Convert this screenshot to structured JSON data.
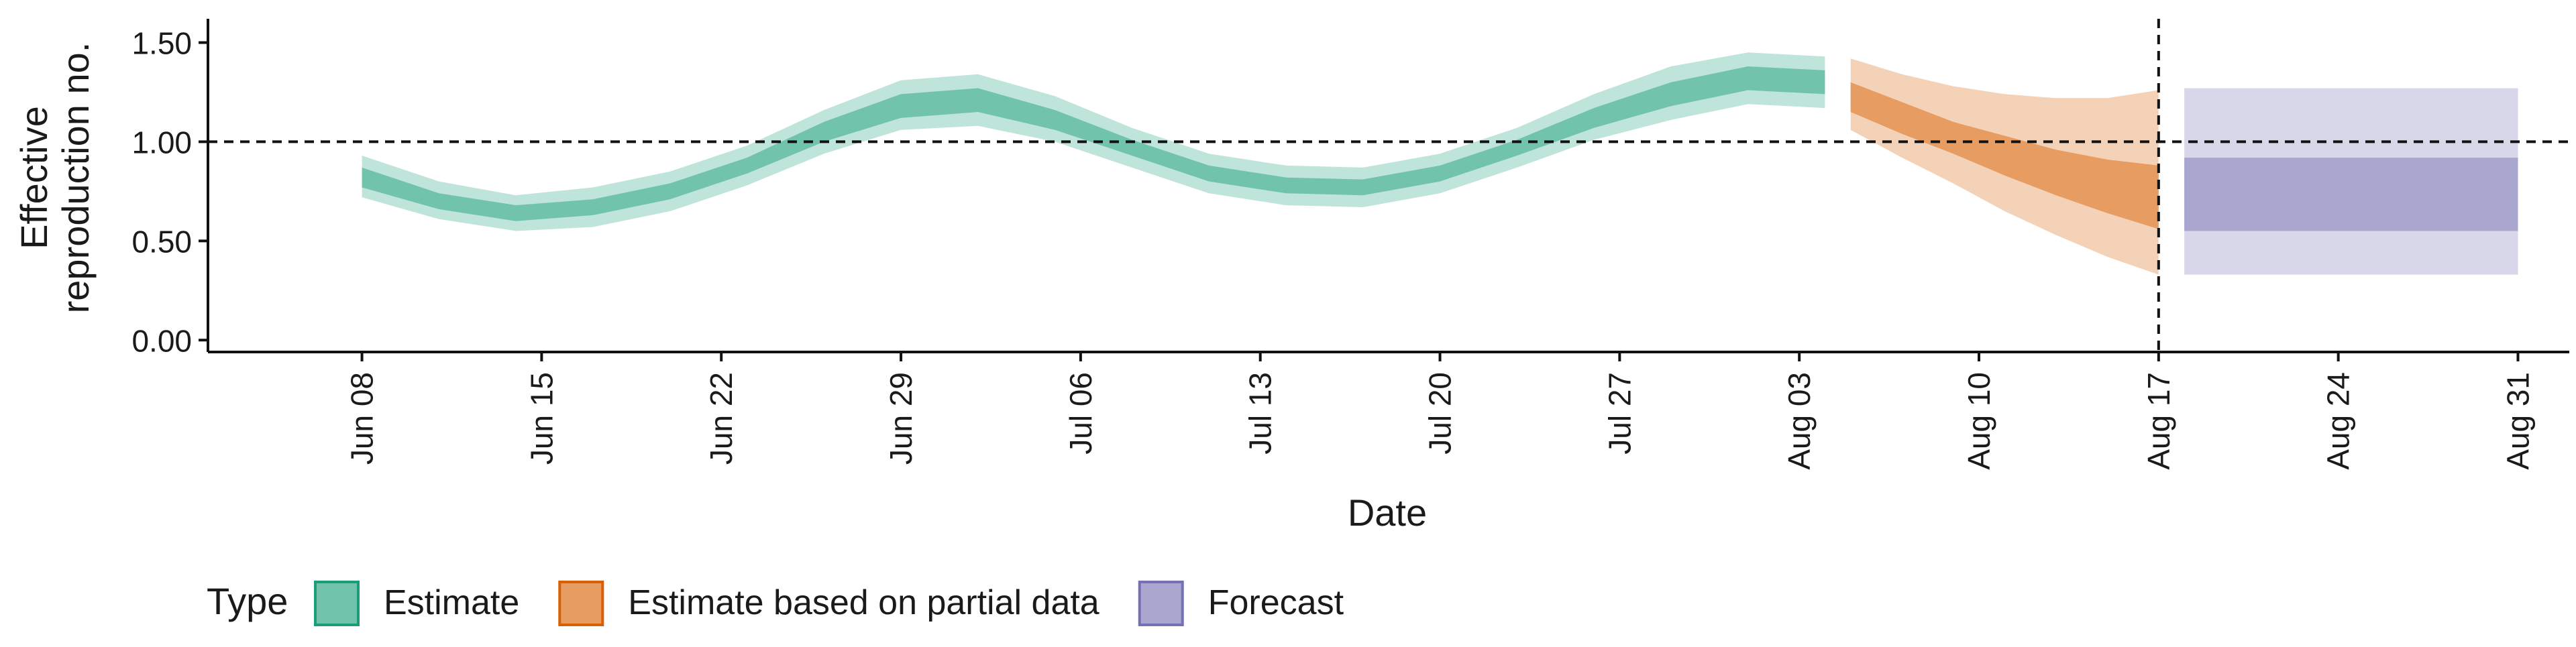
{
  "chart_data": {
    "type": "area",
    "xlabel": "Date",
    "ylabel_lines": [
      "Effective",
      "reproduction no."
    ],
    "ylim": [
      -0.06,
      1.62
    ],
    "yticks": [
      0.0,
      0.5,
      1.0,
      1.5
    ],
    "ytick_labels": [
      "0.00",
      "0.50",
      "1.00",
      "1.50"
    ],
    "xlim": [
      "2020-06-02",
      "2020-09-02"
    ],
    "xticks": [
      "2020-06-08",
      "2020-06-15",
      "2020-06-22",
      "2020-06-29",
      "2020-07-06",
      "2020-07-13",
      "2020-07-20",
      "2020-07-27",
      "2020-08-03",
      "2020-08-10",
      "2020-08-17",
      "2020-08-24",
      "2020-08-31"
    ],
    "xtick_labels": [
      "Jun 08",
      "Jun 15",
      "Jun 22",
      "Jun 29",
      "Jul 06",
      "Jul 13",
      "Jul 20",
      "Jul 27",
      "Aug 03",
      "Aug 10",
      "Aug 17",
      "Aug 24",
      "Aug 31"
    ],
    "reference_line_y": 1.0,
    "vertical_line_x": "2020-08-17",
    "legend": {
      "title": "Type",
      "position": "bottom-left",
      "entries": [
        "Estimate",
        "Estimate based on partial data",
        "Forecast"
      ]
    },
    "series": [
      {
        "name": "Estimate",
        "color": "#1B9E77",
        "dates": [
          "2020-06-08",
          "2020-06-11",
          "2020-06-14",
          "2020-06-17",
          "2020-06-20",
          "2020-06-23",
          "2020-06-26",
          "2020-06-29",
          "2020-07-02",
          "2020-07-05",
          "2020-07-08",
          "2020-07-11",
          "2020-07-14",
          "2020-07-17",
          "2020-07-20",
          "2020-07-23",
          "2020-07-26",
          "2020-07-29",
          "2020-08-01",
          "2020-08-04"
        ],
        "median": [
          0.82,
          0.7,
          0.64,
          0.67,
          0.75,
          0.88,
          1.05,
          1.18,
          1.21,
          1.11,
          0.97,
          0.84,
          0.78,
          0.77,
          0.84,
          0.97,
          1.12,
          1.24,
          1.32,
          1.3
        ],
        "inner_lower": [
          0.77,
          0.66,
          0.6,
          0.63,
          0.71,
          0.84,
          1.0,
          1.12,
          1.15,
          1.06,
          0.93,
          0.8,
          0.74,
          0.73,
          0.8,
          0.93,
          1.07,
          1.18,
          1.26,
          1.24
        ],
        "inner_upper": [
          0.87,
          0.74,
          0.68,
          0.71,
          0.79,
          0.92,
          1.1,
          1.24,
          1.27,
          1.16,
          1.01,
          0.88,
          0.82,
          0.81,
          0.88,
          1.01,
          1.17,
          1.3,
          1.38,
          1.36
        ],
        "outer_lower": [
          0.72,
          0.61,
          0.55,
          0.57,
          0.65,
          0.78,
          0.94,
          1.06,
          1.08,
          1.0,
          0.87,
          0.74,
          0.68,
          0.67,
          0.74,
          0.87,
          1.01,
          1.11,
          1.19,
          1.17
        ],
        "outer_upper": [
          0.93,
          0.8,
          0.73,
          0.77,
          0.85,
          0.98,
          1.16,
          1.31,
          1.34,
          1.23,
          1.07,
          0.94,
          0.88,
          0.87,
          0.94,
          1.07,
          1.24,
          1.38,
          1.45,
          1.43
        ]
      },
      {
        "name": "Estimate based on partial data",
        "color": "#D95F02",
        "dates": [
          "2020-08-05",
          "2020-08-07",
          "2020-08-09",
          "2020-08-11",
          "2020-08-13",
          "2020-08-15",
          "2020-08-17"
        ],
        "median": [
          1.22,
          1.12,
          1.02,
          0.93,
          0.84,
          0.77,
          0.7
        ],
        "inner_lower": [
          1.15,
          1.04,
          0.94,
          0.83,
          0.73,
          0.64,
          0.56
        ],
        "inner_upper": [
          1.3,
          1.2,
          1.1,
          1.03,
          0.96,
          0.91,
          0.88
        ],
        "outer_lower": [
          1.06,
          0.92,
          0.79,
          0.65,
          0.53,
          0.42,
          0.33
        ],
        "outer_upper": [
          1.42,
          1.34,
          1.28,
          1.24,
          1.22,
          1.22,
          1.26
        ]
      },
      {
        "name": "Forecast",
        "color": "#7570B3",
        "dates": [
          "2020-08-18",
          "2020-08-31"
        ],
        "median": [
          0.73,
          0.73
        ],
        "inner_lower": [
          0.55,
          0.55
        ],
        "inner_upper": [
          0.92,
          0.92
        ],
        "outer_lower": [
          0.33,
          0.33
        ],
        "outer_upper": [
          1.27,
          1.27
        ]
      }
    ]
  }
}
